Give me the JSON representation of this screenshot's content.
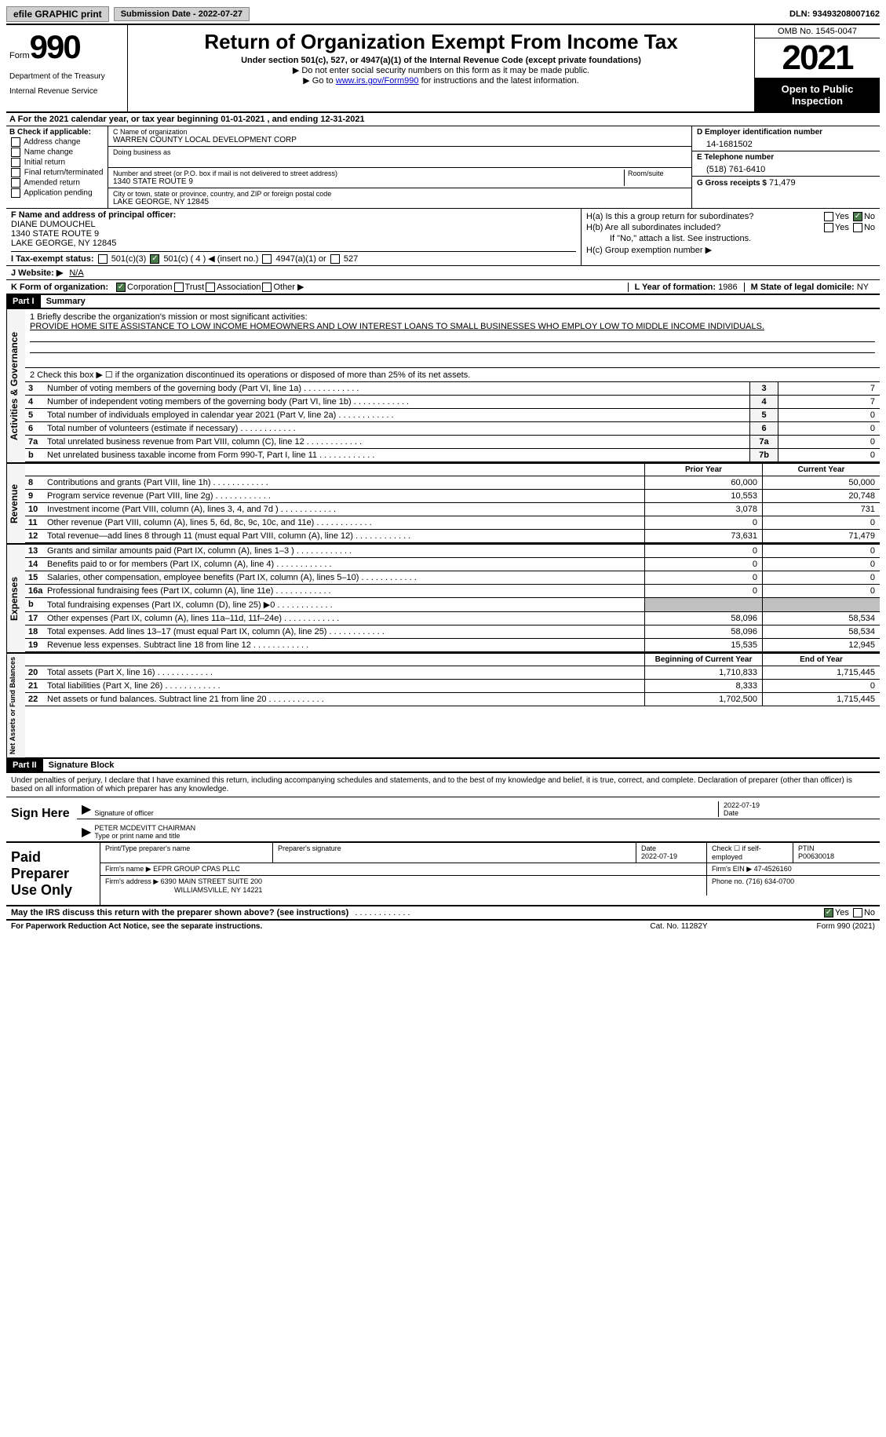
{
  "top": {
    "efile": "efile GRAPHIC print",
    "submission": "Submission Date - 2022-07-27",
    "dln": "DLN: 93493208007162"
  },
  "header": {
    "form_word": "Form",
    "form_num": "990",
    "dept": "Department of the Treasury",
    "irs": "Internal Revenue Service",
    "title": "Return of Organization Exempt From Income Tax",
    "sub": "Under section 501(c), 527, or 4947(a)(1) of the Internal Revenue Code (except private foundations)",
    "note1": "▶ Do not enter social security numbers on this form as it may be made public.",
    "note2_pre": "▶ Go to ",
    "note2_link": "www.irs.gov/Form990",
    "note2_post": " for instructions and the latest information.",
    "omb": "OMB No. 1545-0047",
    "year": "2021",
    "open": "Open to Public Inspection"
  },
  "row_a": "A For the 2021 calendar year, or tax year beginning 01-01-2021   , and ending 12-31-2021",
  "col_b": {
    "label": "B Check if applicable:",
    "items": [
      "Address change",
      "Name change",
      "Initial return",
      "Final return/terminated",
      "Amended return",
      "Application pending"
    ]
  },
  "col_c": {
    "name_lbl": "C Name of organization",
    "name": "WARREN COUNTY LOCAL DEVELOPMENT CORP",
    "dba_lbl": "Doing business as",
    "street_lbl": "Number and street (or P.O. box if mail is not delivered to street address)",
    "street": "1340 STATE ROUTE 9",
    "room_lbl": "Room/suite",
    "city_lbl": "City or town, state or province, country, and ZIP or foreign postal code",
    "city": "LAKE GEORGE, NY  12845"
  },
  "col_d": {
    "ein_lbl": "D Employer identification number",
    "ein": "14-1681502",
    "tel_lbl": "E Telephone number",
    "tel": "(518) 761-6410",
    "gross_lbl": "G Gross receipts $",
    "gross": "71,479"
  },
  "col_f": {
    "lbl": "F Name and address of principal officer:",
    "name": "DIANE DUMOUCHEL",
    "addr1": "1340 STATE ROUTE 9",
    "addr2": "LAKE GEORGE, NY  12845"
  },
  "col_h": {
    "ha": "H(a)  Is this a group return for subordinates?",
    "hb": "H(b)  Are all subordinates included?",
    "hb_note": "If \"No,\" attach a list. See instructions.",
    "hc": "H(c)  Group exemption number ▶"
  },
  "row_i": {
    "lbl": "I  Tax-exempt status:",
    "opt1": "501(c)(3)",
    "opt2": "501(c) ( 4 ) ◀ (insert no.)",
    "opt3": "4947(a)(1) or",
    "opt4": "527"
  },
  "row_j": {
    "lbl": "J  Website: ▶",
    "val": "N/A"
  },
  "row_k": {
    "lbl": "K Form of organization:",
    "opts": [
      "Corporation",
      "Trust",
      "Association",
      "Other ▶"
    ],
    "l_lbl": "L Year of formation:",
    "l_val": "1986",
    "m_lbl": "M State of legal domicile:",
    "m_val": "NY"
  },
  "part1": {
    "hdr": "Part I",
    "title": "Summary"
  },
  "mission": {
    "lbl": "1  Briefly describe the organization's mission or most significant activities:",
    "txt": "PROVIDE HOME SITE ASSISTANCE TO LOW INCOME HOMEOWNERS AND LOW INTEREST LOANS TO SMALL BUSINESSES WHO EMPLOY LOW TO MIDDLE INCOME INDIVIDUALS."
  },
  "line2": "2  Check this box ▶ ☐ if the organization discontinued its operations or disposed of more than 25% of its net assets.",
  "gov_rows": [
    {
      "n": "3",
      "desc": "Number of voting members of the governing body (Part VI, line 1a)",
      "box": "3",
      "val": "7"
    },
    {
      "n": "4",
      "desc": "Number of independent voting members of the governing body (Part VI, line 1b)",
      "box": "4",
      "val": "7"
    },
    {
      "n": "5",
      "desc": "Total number of individuals employed in calendar year 2021 (Part V, line 2a)",
      "box": "5",
      "val": "0"
    },
    {
      "n": "6",
      "desc": "Total number of volunteers (estimate if necessary)",
      "box": "6",
      "val": "0"
    },
    {
      "n": "7a",
      "desc": "Total unrelated business revenue from Part VIII, column (C), line 12",
      "box": "7a",
      "val": "0"
    },
    {
      "n": "b",
      "desc": "Net unrelated business taxable income from Form 990-T, Part I, line 11",
      "box": "7b",
      "val": "0"
    }
  ],
  "col_hdrs": {
    "prior": "Prior Year",
    "current": "Current Year"
  },
  "revenue": [
    {
      "n": "8",
      "desc": "Contributions and grants (Part VIII, line 1h)",
      "c1": "60,000",
      "c2": "50,000"
    },
    {
      "n": "9",
      "desc": "Program service revenue (Part VIII, line 2g)",
      "c1": "10,553",
      "c2": "20,748"
    },
    {
      "n": "10",
      "desc": "Investment income (Part VIII, column (A), lines 3, 4, and 7d )",
      "c1": "3,078",
      "c2": "731"
    },
    {
      "n": "11",
      "desc": "Other revenue (Part VIII, column (A), lines 5, 6d, 8c, 9c, 10c, and 11e)",
      "c1": "0",
      "c2": "0"
    },
    {
      "n": "12",
      "desc": "Total revenue—add lines 8 through 11 (must equal Part VIII, column (A), line 12)",
      "c1": "73,631",
      "c2": "71,479"
    }
  ],
  "expenses": [
    {
      "n": "13",
      "desc": "Grants and similar amounts paid (Part IX, column (A), lines 1–3 )",
      "c1": "0",
      "c2": "0"
    },
    {
      "n": "14",
      "desc": "Benefits paid to or for members (Part IX, column (A), line 4)",
      "c1": "0",
      "c2": "0"
    },
    {
      "n": "15",
      "desc": "Salaries, other compensation, employee benefits (Part IX, column (A), lines 5–10)",
      "c1": "0",
      "c2": "0"
    },
    {
      "n": "16a",
      "desc": "Professional fundraising fees (Part IX, column (A), line 11e)",
      "c1": "0",
      "c2": "0"
    },
    {
      "n": "b",
      "desc": "Total fundraising expenses (Part IX, column (D), line 25) ▶0",
      "c1": "shade",
      "c2": "shade"
    },
    {
      "n": "17",
      "desc": "Other expenses (Part IX, column (A), lines 11a–11d, 11f–24e)",
      "c1": "58,096",
      "c2": "58,534"
    },
    {
      "n": "18",
      "desc": "Total expenses. Add lines 13–17 (must equal Part IX, column (A), line 25)",
      "c1": "58,096",
      "c2": "58,534"
    },
    {
      "n": "19",
      "desc": "Revenue less expenses. Subtract line 18 from line 12",
      "c1": "15,535",
      "c2": "12,945"
    }
  ],
  "net_hdrs": {
    "begin": "Beginning of Current Year",
    "end": "End of Year"
  },
  "net": [
    {
      "n": "20",
      "desc": "Total assets (Part X, line 16)",
      "c1": "1,710,833",
      "c2": "1,715,445"
    },
    {
      "n": "21",
      "desc": "Total liabilities (Part X, line 26)",
      "c1": "8,333",
      "c2": "0"
    },
    {
      "n": "22",
      "desc": "Net assets or fund balances. Subtract line 21 from line 20",
      "c1": "1,702,500",
      "c2": "1,715,445"
    }
  ],
  "part2": {
    "hdr": "Part II",
    "title": "Signature Block"
  },
  "sig": {
    "declare": "Under penalties of perjury, I declare that I have examined this return, including accompanying schedules and statements, and to the best of my knowledge and belief, it is true, correct, and complete. Declaration of preparer (other than officer) is based on all information of which preparer has any knowledge.",
    "sign_here": "Sign Here",
    "sig_of_officer": "Signature of officer",
    "date": "Date",
    "date_val": "2022-07-19",
    "name_val": "PETER MCDEVITT CHAIRMAN",
    "name_lbl": "Type or print name and title"
  },
  "paid": {
    "label": "Paid Preparer Use Only",
    "print_lbl": "Print/Type preparer's name",
    "sig_lbl": "Preparer's signature",
    "date_lbl": "Date",
    "date_val": "2022-07-19",
    "check_lbl": "Check ☐ if self-employed",
    "ptin_lbl": "PTIN",
    "ptin": "P00630018",
    "firm_name_lbl": "Firm's name    ▶",
    "firm_name": "EFPR GROUP CPAS PLLC",
    "firm_ein_lbl": "Firm's EIN ▶",
    "firm_ein": "47-4526160",
    "firm_addr_lbl": "Firm's address ▶",
    "firm_addr1": "6390 MAIN STREET SUITE 200",
    "firm_addr2": "WILLIAMSVILLE, NY  14221",
    "phone_lbl": "Phone no.",
    "phone": "(716) 634-0700"
  },
  "may_discuss": "May the IRS discuss this return with the preparer shown above? (see instructions)",
  "footer": {
    "l": "For Paperwork Reduction Act Notice, see the separate instructions.",
    "m": "Cat. No. 11282Y",
    "r": "Form 990 (2021)"
  },
  "vtabs": {
    "gov": "Activities & Governance",
    "rev": "Revenue",
    "exp": "Expenses",
    "net": "Net Assets or Fund Balances"
  }
}
